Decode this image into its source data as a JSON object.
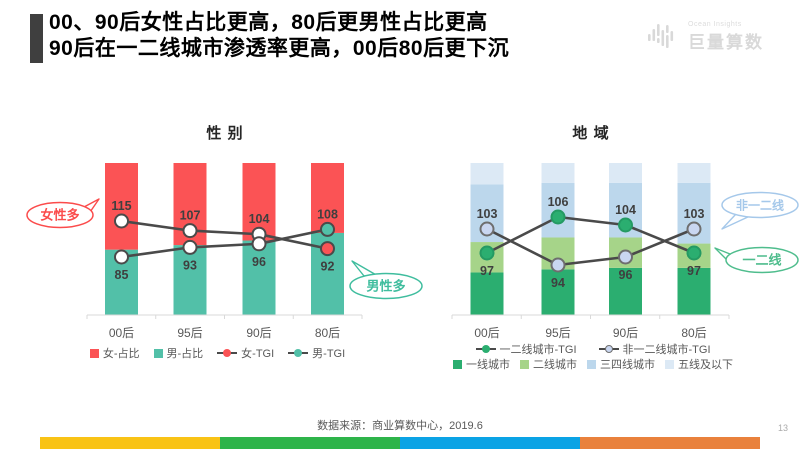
{
  "header": {
    "title_line1": "00、90后女性占比更高，80后更男性占比更高",
    "title_line2": "90后在一二线城市渗透率更高，00后80后更下沉",
    "logo_subtext": "Ocean Insights",
    "logo_text": "巨量算数"
  },
  "chart_data": [
    {
      "type": "bar",
      "subtype": "stacked-100pct-bars-with-tgi-lines",
      "title": "性 别",
      "categories": [
        "00后",
        "95后",
        "90后",
        "80后"
      ],
      "bar_values_estimated": true,
      "bar_series_bottom_up": [
        {
          "name": "男-占比",
          "color": "#52C0A8",
          "values": [
            43,
            46,
            49,
            54
          ]
        },
        {
          "name": "女-占比",
          "color": "#FB5355",
          "values": [
            57,
            54,
            51,
            46
          ]
        }
      ],
      "line_series": [
        {
          "name": "女-TGI",
          "color": "#FB5355",
          "values": [
            115,
            107,
            104,
            92
          ]
        },
        {
          "name": "男-TGI",
          "color": "#52C0A8",
          "values": [
            85,
            93,
            96,
            108
          ]
        }
      ],
      "legend_rows": [
        [
          {
            "label": "女-占比",
            "icon": "square",
            "color": "#FB5355"
          },
          {
            "label": "男-占比",
            "icon": "square",
            "color": "#52C0A8"
          },
          {
            "label": "女-TGI",
            "icon": "line-dot",
            "color": "#FB5355"
          },
          {
            "label": "男-TGI",
            "icon": "line-dot",
            "color": "#52C0A8"
          }
        ]
      ]
    },
    {
      "type": "bar",
      "subtype": "stacked-100pct-bars-with-tgi-lines",
      "title": "地 域",
      "categories": [
        "00后",
        "95后",
        "90后",
        "80后"
      ],
      "bar_values_estimated": true,
      "bar_series_bottom_up": [
        {
          "name": "一线城市",
          "color": "#2BAE70",
          "values": [
            28,
            30,
            31,
            31
          ]
        },
        {
          "name": "二线城市",
          "color": "#A6D489",
          "values": [
            20,
            21,
            20,
            16
          ]
        },
        {
          "name": "三四线城市",
          "color": "#BCD7EC",
          "values": [
            38,
            36,
            36,
            40
          ]
        },
        {
          "name": "五线及以下",
          "color": "#DCE9F5",
          "values": [
            14,
            13,
            13,
            13
          ]
        }
      ],
      "line_series": [
        {
          "name": "一二线城市-TGI",
          "color": "#2BAE70",
          "marker_fill": "#2BAE70",
          "marker_stroke": "#249A63",
          "values": [
            97,
            106,
            104,
            97
          ]
        },
        {
          "name": "非一二线城市-TGI",
          "color": "#C9D6F0",
          "marker_fill": "#C9D6F0",
          "marker_stroke": "#6E6E6E",
          "values": [
            103,
            94,
            96,
            103
          ]
        }
      ],
      "legend_rows": [
        [
          {
            "label": "一二线城市-TGI",
            "icon": "line-dot",
            "color": "#2BAE70"
          },
          {
            "label": "非一二线城市-TGI",
            "icon": "line-dot",
            "color": "#C9D6F0",
            "border": "#6E6E6E"
          }
        ],
        [
          {
            "label": "一线城市",
            "icon": "square",
            "color": "#2BAE70"
          },
          {
            "label": "二线城市",
            "icon": "square",
            "color": "#A6D489"
          },
          {
            "label": "三四线城市",
            "icon": "square",
            "color": "#BCD7EC"
          },
          {
            "label": "五线及以下",
            "icon": "square",
            "color": "#DCE9F5"
          }
        ]
      ]
    }
  ],
  "annotations": [
    {
      "text": "女性多",
      "color": "#FB4B4B"
    },
    {
      "text": "男性多",
      "color": "#3FBD9E"
    },
    {
      "text": "非一二线",
      "color": "#A5C8EA"
    },
    {
      "text": "一二线",
      "color": "#4FBD8D"
    }
  ],
  "footer": {
    "source": "数据来源：商业算数中心，2019.6",
    "page": "13"
  },
  "footer_bar_colors": [
    "#F9C315",
    "#2EB44A",
    "#0BA3E5",
    "#E9813C"
  ]
}
